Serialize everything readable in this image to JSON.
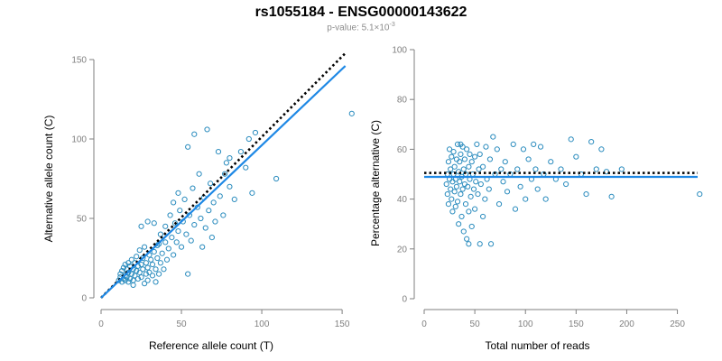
{
  "header": {
    "title": "rs1055184 - ENSG00000143622",
    "subtitle_prefix": "p-value: 5.1×10",
    "subtitle_exponent": "-3"
  },
  "colors": {
    "points": "#2b8cbe",
    "fit_line": "#1e88e5",
    "reference_line": "#000000",
    "axis": "#7f7f7f"
  },
  "chart_data": [
    {
      "type": "scatter",
      "title": "",
      "xlabel": "Reference allele count (T)",
      "ylabel": "Alternative allele count (C)",
      "xlim": [
        0,
        155
      ],
      "ylim": [
        0,
        150
      ],
      "xticks": [
        0,
        50,
        100,
        150
      ],
      "yticks": [
        0,
        50,
        100,
        150
      ],
      "grid": false,
      "reference_line": {
        "style": "dotted",
        "from": [
          0,
          0
        ],
        "to": [
          152,
          154
        ]
      },
      "fit_line": {
        "style": "solid",
        "from": [
          0,
          0
        ],
        "to": [
          152,
          146
        ]
      },
      "points": [
        [
          11,
          11
        ],
        [
          12,
          13
        ],
        [
          12,
          15
        ],
        [
          13,
          10
        ],
        [
          13,
          17
        ],
        [
          14,
          12
        ],
        [
          14,
          19
        ],
        [
          15,
          11
        ],
        [
          15,
          14
        ],
        [
          15,
          21
        ],
        [
          16,
          13
        ],
        [
          16,
          18
        ],
        [
          17,
          10
        ],
        [
          17,
          16
        ],
        [
          17,
          22
        ],
        [
          18,
          12
        ],
        [
          18,
          20
        ],
        [
          19,
          15
        ],
        [
          19,
          24
        ],
        [
          20,
          11
        ],
        [
          20,
          18
        ],
        [
          21,
          14
        ],
        [
          21,
          22
        ],
        [
          22,
          17
        ],
        [
          22,
          26
        ],
        [
          23,
          12
        ],
        [
          23,
          20
        ],
        [
          24,
          16
        ],
        [
          24,
          30
        ],
        [
          25,
          21
        ],
        [
          25,
          13
        ],
        [
          26,
          25
        ],
        [
          26,
          18
        ],
        [
          27,
          9
        ],
        [
          27,
          32
        ],
        [
          28,
          15
        ],
        [
          28,
          22
        ],
        [
          29,
          11
        ],
        [
          29,
          19
        ],
        [
          30,
          27
        ],
        [
          30,
          16
        ],
        [
          31,
          24
        ],
        [
          32,
          14
        ],
        [
          32,
          21
        ],
        [
          33,
          29
        ],
        [
          34,
          10
        ],
        [
          34,
          18
        ],
        [
          35,
          25
        ],
        [
          35,
          33
        ],
        [
          36,
          15
        ],
        [
          37,
          22
        ],
        [
          37,
          40
        ],
        [
          38,
          28
        ],
        [
          39,
          18
        ],
        [
          40,
          35
        ],
        [
          40,
          45
        ],
        [
          41,
          24
        ],
        [
          42,
          31
        ],
        [
          43,
          52
        ],
        [
          44,
          38
        ],
        [
          45,
          27
        ],
        [
          45,
          60
        ],
        [
          46,
          47
        ],
        [
          47,
          35
        ],
        [
          48,
          66
        ],
        [
          48,
          42
        ],
        [
          49,
          55
        ],
        [
          50,
          32
        ],
        [
          51,
          48
        ],
        [
          52,
          62
        ],
        [
          53,
          40
        ],
        [
          54,
          15
        ],
        [
          54,
          95
        ],
        [
          55,
          52
        ],
        [
          56,
          36
        ],
        [
          57,
          69
        ],
        [
          58,
          46
        ],
        [
          58,
          103
        ],
        [
          60,
          57
        ],
        [
          61,
          78
        ],
        [
          62,
          50
        ],
        [
          63,
          32
        ],
        [
          64,
          63
        ],
        [
          65,
          44
        ],
        [
          66,
          106
        ],
        [
          67,
          55
        ],
        [
          68,
          72
        ],
        [
          69,
          38
        ],
        [
          70,
          60
        ],
        [
          71,
          48
        ],
        [
          73,
          92
        ],
        [
          74,
          64
        ],
        [
          76,
          52
        ],
        [
          77,
          78
        ],
        [
          78,
          85
        ],
        [
          80,
          70
        ],
        [
          80,
          88
        ],
        [
          83,
          62
        ],
        [
          87,
          92
        ],
        [
          90,
          82
        ],
        [
          92,
          100
        ],
        [
          94,
          66
        ],
        [
          96,
          104
        ],
        [
          109,
          75
        ],
        [
          156,
          116
        ],
        [
          20,
          8
        ],
        [
          25,
          45
        ],
        [
          29,
          48
        ],
        [
          33,
          47
        ],
        [
          36,
          34
        ]
      ]
    },
    {
      "type": "scatter",
      "title": "",
      "xlabel": "Total number of reads",
      "ylabel": "Percentage alternative (C)",
      "xlim": [
        0,
        270
      ],
      "ylim": [
        0,
        100
      ],
      "xticks": [
        0,
        50,
        100,
        150,
        200,
        250
      ],
      "yticks": [
        0,
        20,
        40,
        60,
        80,
        100
      ],
      "grid": false,
      "reference_line": {
        "style": "dotted",
        "y": 50.5
      },
      "fit_line": {
        "style": "solid",
        "y": 48.9
      },
      "points": [
        [
          22,
          46
        ],
        [
          23,
          42
        ],
        [
          23,
          50
        ],
        [
          24,
          38
        ],
        [
          24,
          55
        ],
        [
          25,
          48
        ],
        [
          25,
          60
        ],
        [
          26,
          44
        ],
        [
          26,
          52
        ],
        [
          27,
          40
        ],
        [
          27,
          57
        ],
        [
          28,
          47
        ],
        [
          28,
          35
        ],
        [
          29,
          50
        ],
        [
          29,
          59
        ],
        [
          30,
          43
        ],
        [
          30,
          53
        ],
        [
          31,
          37
        ],
        [
          31,
          48
        ],
        [
          32,
          56
        ],
        [
          32,
          45
        ],
        [
          33,
          62
        ],
        [
          33,
          39
        ],
        [
          34,
          51
        ],
        [
          34,
          30
        ],
        [
          35,
          47
        ],
        [
          35,
          55
        ],
        [
          36,
          42
        ],
        [
          36,
          58
        ],
        [
          37,
          33
        ],
        [
          37,
          49
        ],
        [
          38,
          61
        ],
        [
          38,
          44
        ],
        [
          39,
          52
        ],
        [
          39,
          27
        ],
        [
          40,
          46
        ],
        [
          40,
          56
        ],
        [
          41,
          38
        ],
        [
          41,
          50
        ],
        [
          42,
          60
        ],
        [
          42,
          24
        ],
        [
          43,
          45
        ],
        [
          44,
          53
        ],
        [
          44,
          35
        ],
        [
          45,
          48
        ],
        [
          45,
          58
        ],
        [
          46,
          41
        ],
        [
          47,
          55
        ],
        [
          47,
          29
        ],
        [
          48,
          50
        ],
        [
          49,
          44
        ],
        [
          50,
          57
        ],
        [
          50,
          36
        ],
        [
          51,
          47
        ],
        [
          52,
          62
        ],
        [
          53,
          42
        ],
        [
          54,
          52
        ],
        [
          55,
          22
        ],
        [
          55,
          58
        ],
        [
          56,
          46
        ],
        [
          58,
          33
        ],
        [
          58,
          53
        ],
        [
          60,
          40
        ],
        [
          61,
          61
        ],
        [
          62,
          48
        ],
        [
          64,
          44
        ],
        [
          65,
          56
        ],
        [
          66,
          22
        ],
        [
          68,
          65
        ],
        [
          70,
          50
        ],
        [
          72,
          60
        ],
        [
          74,
          38
        ],
        [
          76,
          52
        ],
        [
          78,
          47
        ],
        [
          80,
          55
        ],
        [
          82,
          43
        ],
        [
          85,
          50
        ],
        [
          88,
          62
        ],
        [
          90,
          36
        ],
        [
          92,
          52
        ],
        [
          95,
          45
        ],
        [
          98,
          60
        ],
        [
          100,
          40
        ],
        [
          103,
          56
        ],
        [
          106,
          48
        ],
        [
          108,
          62
        ],
        [
          110,
          52
        ],
        [
          112,
          44
        ],
        [
          115,
          61
        ],
        [
          118,
          50
        ],
        [
          120,
          40
        ],
        [
          125,
          55
        ],
        [
          130,
          48
        ],
        [
          135,
          52
        ],
        [
          140,
          46
        ],
        [
          145,
          64
        ],
        [
          150,
          57
        ],
        [
          155,
          50
        ],
        [
          160,
          42
        ],
        [
          165,
          63
        ],
        [
          170,
          52
        ],
        [
          175,
          60
        ],
        [
          180,
          51
        ],
        [
          185,
          41
        ],
        [
          195,
          52
        ],
        [
          272,
          42
        ],
        [
          36,
          62
        ],
        [
          44,
          22
        ]
      ]
    }
  ]
}
